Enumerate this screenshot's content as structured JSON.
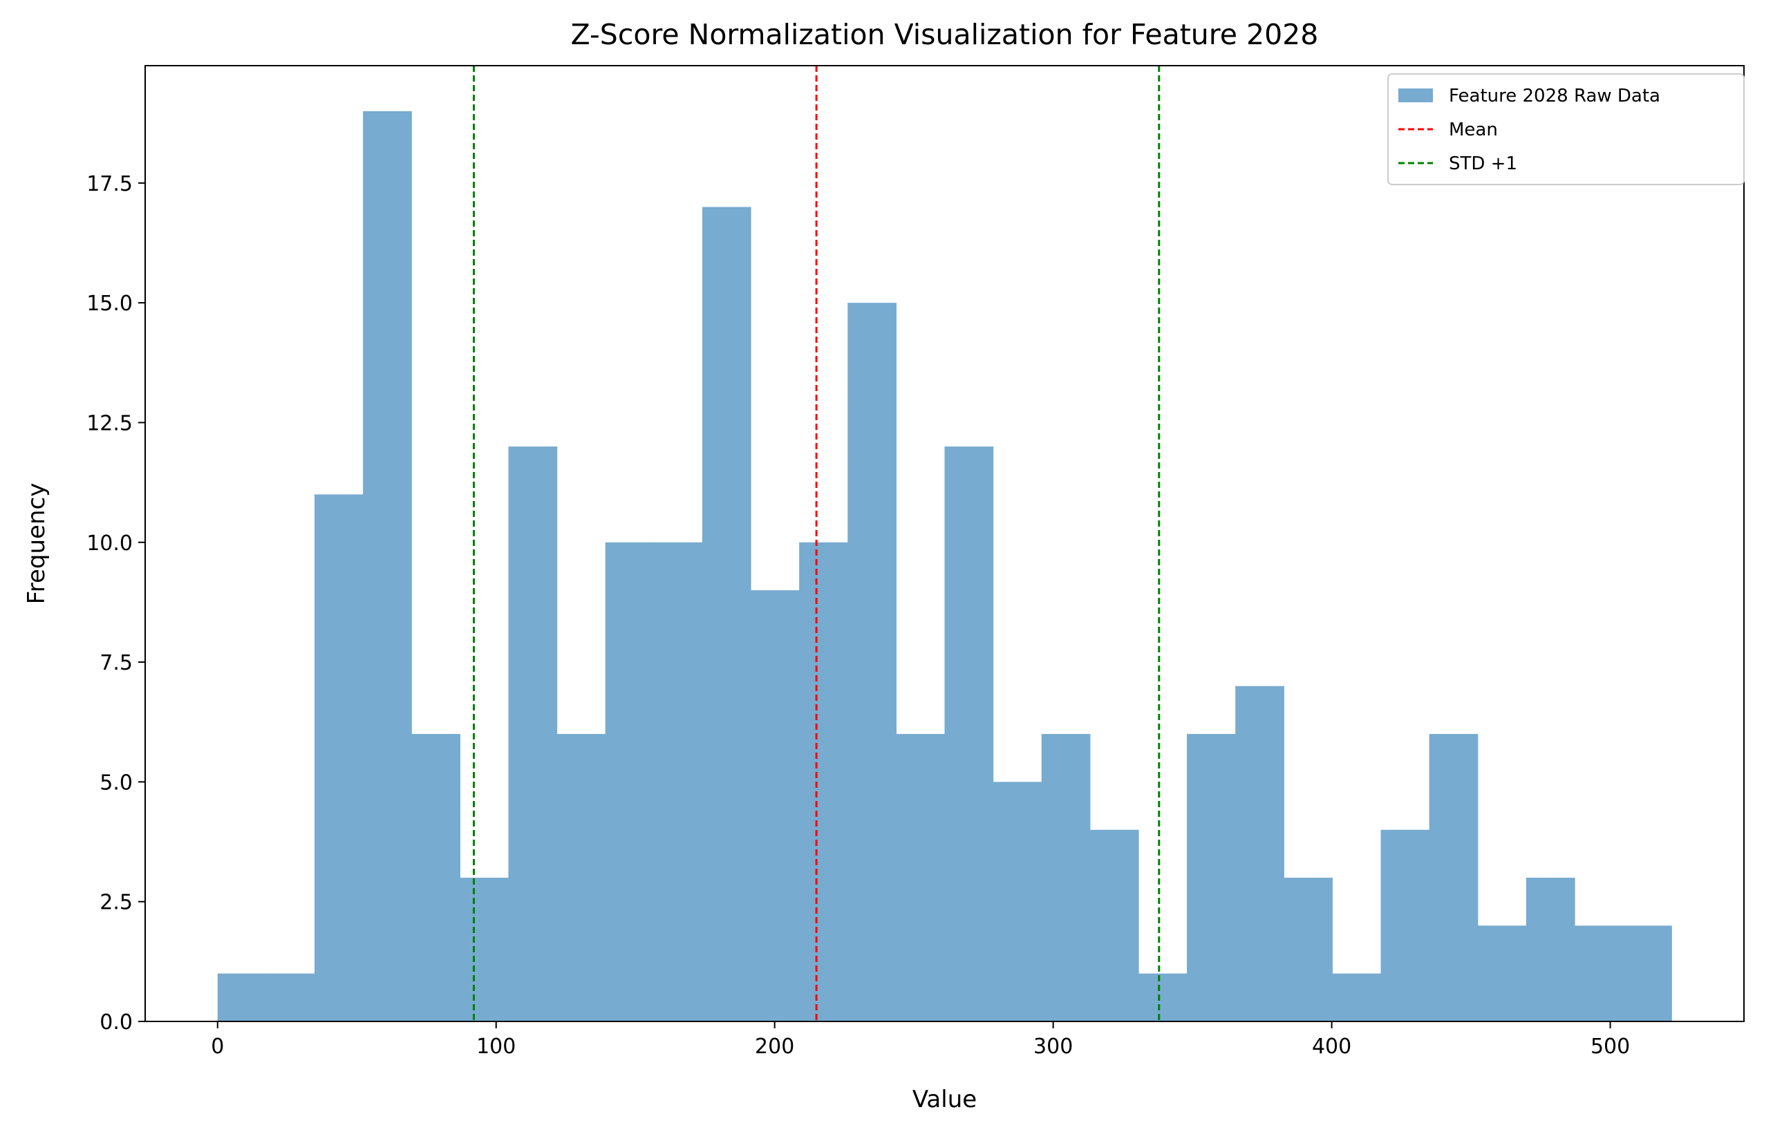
{
  "chart_data": {
    "type": "bar",
    "subtype": "histogram",
    "title": "Z-Score Normalization Visualization for Feature 2028",
    "xlabel": "Value",
    "ylabel": "Frequency",
    "xlim": [
      -26,
      548
    ],
    "ylim": [
      0,
      19.95
    ],
    "xticks": [
      0,
      100,
      200,
      300,
      400,
      500
    ],
    "xtick_labels": [
      "0",
      "100",
      "200",
      "300",
      "400",
      "500"
    ],
    "yticks": [
      0,
      2.5,
      5,
      7.5,
      10,
      12.5,
      15,
      17.5
    ],
    "ytick_labels": [
      "0.0",
      "2.5",
      "5.0",
      "7.5",
      "10.0",
      "12.5",
      "15.0",
      "17.5"
    ],
    "grid": false,
    "legend_position": "top-right",
    "bins": {
      "start": 0,
      "width": 17.4,
      "count": 30
    },
    "series": [
      {
        "name": "Feature 2028 Raw Data",
        "color": "#77abd0",
        "values": [
          1,
          1,
          11,
          19,
          6,
          3,
          12,
          6,
          10,
          10,
          17,
          9,
          10,
          15,
          6,
          12,
          5,
          6,
          4,
          1,
          6,
          7,
          3,
          1,
          4,
          6,
          2,
          3,
          2,
          2
        ]
      }
    ],
    "reference_lines": [
      {
        "name": "Mean",
        "x": 215,
        "color": "#ff0000",
        "style": "dashed"
      },
      {
        "name": "STD +1",
        "x": 92,
        "color": "#008000",
        "style": "dashed"
      },
      {
        "name": "STD +1",
        "x": 338,
        "color": "#008000",
        "style": "dashed"
      }
    ],
    "legend": [
      {
        "label": "Feature 2028 Raw Data",
        "kind": "patch",
        "color": "#77abd0"
      },
      {
        "label": "Mean",
        "kind": "dashed-line",
        "color": "#ff0000"
      },
      {
        "label": "STD +1",
        "kind": "dashed-line",
        "color": "#008000"
      }
    ]
  }
}
